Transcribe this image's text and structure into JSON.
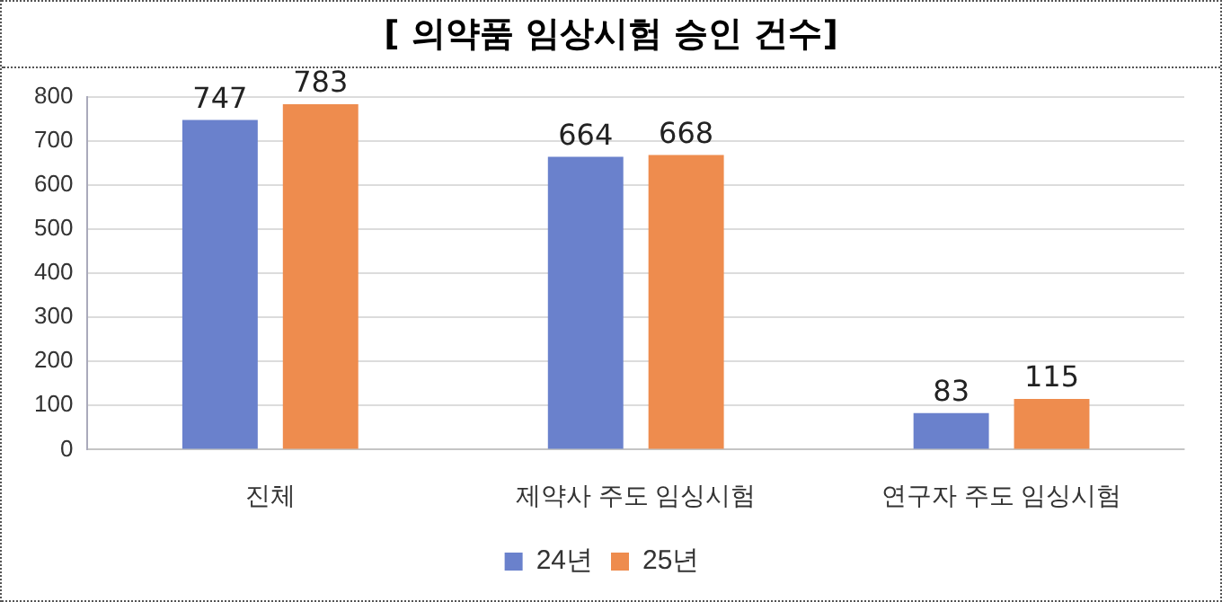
{
  "chart_data": {
    "type": "bar",
    "title": "[ 의약품 임상시험 승인 건수]",
    "categories": [
      "진체",
      "제약사 주도 임싱시험",
      "연구자 주도 임싱시험"
    ],
    "series": [
      {
        "name": "24년",
        "color": "#6a81cc",
        "values": [
          747,
          664,
          83
        ]
      },
      {
        "name": "25년",
        "color": "#ee8c4e",
        "values": [
          783,
          668,
          115
        ]
      }
    ],
    "ylim": [
      0,
      800
    ],
    "yticks": [
      0,
      100,
      200,
      300,
      400,
      500,
      600,
      700,
      800
    ],
    "grid": "y",
    "legend": "bottom",
    "data_labels": true
  }
}
